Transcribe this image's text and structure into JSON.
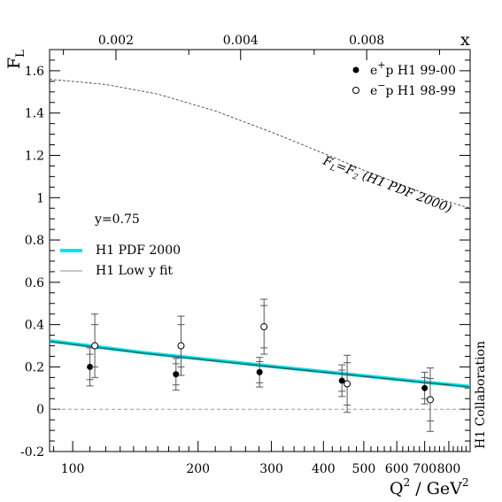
{
  "chart_data": {
    "type": "scatter",
    "title": "",
    "xlabel": "Q",
    "xlabel_sup": "2",
    "xlabel_rest": " / GeV",
    "xlabel_sup2": "2",
    "ylabel": "F",
    "ylabel_sub": "L",
    "xscale": "log",
    "xlim": [
      88,
      900
    ],
    "ylim": [
      -0.2,
      1.7
    ],
    "x_ticks": [
      {
        "value": 100,
        "label": "100"
      },
      {
        "value": 200,
        "label": "200"
      },
      {
        "value": 300,
        "label": "300"
      },
      {
        "value": 400,
        "label": "400"
      },
      {
        "value": 500,
        "label": "500"
      },
      {
        "value": 600,
        "label": "600"
      },
      {
        "value": 700,
        "label": "700"
      },
      {
        "value": 800,
        "label": "800"
      }
    ],
    "y_ticks": [
      {
        "value": -0.2,
        "label": "-0.2"
      },
      {
        "value": 0,
        "label": "0"
      },
      {
        "value": 0.2,
        "label": "0.2"
      },
      {
        "value": 0.4,
        "label": "0.4"
      },
      {
        "value": 0.6,
        "label": "0.6"
      },
      {
        "value": 0.8,
        "label": "0.8"
      },
      {
        "value": 1,
        "label": "1"
      },
      {
        "value": 1.2,
        "label": "1.2"
      },
      {
        "value": 1.4,
        "label": "1.4"
      },
      {
        "value": 1.6,
        "label": "1.6"
      }
    ],
    "top_axis": {
      "label": "x",
      "ticks": [
        {
          "q2": 127,
          "label": "0.002"
        },
        {
          "q2": 253,
          "label": "0.004"
        },
        {
          "q2": 508,
          "label": "0.008"
        }
      ]
    },
    "series": [
      {
        "name": "e⁺p H1 99-00",
        "marker": "filled-circle",
        "points": [
          {
            "x": 110,
            "y": 0.2,
            "stat": 0.06,
            "tot": 0.09
          },
          {
            "x": 177,
            "y": 0.165,
            "stat": 0.05,
            "tot": 0.075
          },
          {
            "x": 281,
            "y": 0.175,
            "stat": 0.05,
            "tot": 0.07
          },
          {
            "x": 443,
            "y": 0.135,
            "stat": 0.05,
            "tot": 0.075
          },
          {
            "x": 700,
            "y": 0.1,
            "stat": 0.05,
            "tot": 0.075
          }
        ]
      },
      {
        "name": "e⁻p H1 98-99",
        "marker": "open-circle",
        "points": [
          {
            "x": 113,
            "y": 0.3,
            "stat": 0.1,
            "tot": 0.15
          },
          {
            "x": 182,
            "y": 0.3,
            "stat": 0.1,
            "tot": 0.14
          },
          {
            "x": 288,
            "y": 0.39,
            "stat": 0.1,
            "tot": 0.13
          },
          {
            "x": 456,
            "y": 0.12,
            "stat": 0.1,
            "tot": 0.135
          },
          {
            "x": 722,
            "y": 0.045,
            "stat": 0.1,
            "tot": 0.15
          }
        ]
      }
    ],
    "curves": [
      {
        "name": "H1 PDF 2000",
        "style": "cyan-band",
        "points": [
          [
            88,
            0.323
          ],
          [
            150,
            0.266
          ],
          [
            300,
            0.203
          ],
          [
            500,
            0.158
          ],
          [
            700,
            0.128
          ],
          [
            900,
            0.107
          ]
        ]
      },
      {
        "name": "H1 Low y fit",
        "style": "thin-line",
        "points": [
          [
            88,
            0.319
          ],
          [
            150,
            0.262
          ],
          [
            300,
            0.199
          ],
          [
            500,
            0.155
          ],
          [
            700,
            0.125
          ],
          [
            900,
            0.104
          ]
        ]
      },
      {
        "name": "F_L=F_2 (H1 PDF 2000)",
        "style": "dashed",
        "points": [
          [
            88,
            1.56
          ],
          [
            120,
            1.535
          ],
          [
            160,
            1.49
          ],
          [
            220,
            1.41
          ],
          [
            300,
            1.31
          ],
          [
            400,
            1.21
          ],
          [
            500,
            1.13
          ],
          [
            600,
            1.07
          ],
          [
            700,
            1.02
          ],
          [
            800,
            0.98
          ],
          [
            900,
            0.95
          ]
        ]
      }
    ],
    "curve_label": {
      "text_main": "F",
      "text_sub1": "L",
      "text_mid": "=F",
      "text_sub2": "2",
      "text_end": " (H1 PDF 2000)"
    },
    "legend": {
      "placement": "top-right",
      "entries": [
        {
          "main": "e",
          "sup": "+",
          "rest": "p H1 99-00"
        },
        {
          "main": "e",
          "sup": "−",
          "rest": "p H1 98-99"
        }
      ]
    },
    "y_annotation": "y=0.75",
    "band_legend": [
      {
        "label": "H1 PDF 2000"
      },
      {
        "label": "H1 Low y fit"
      }
    ],
    "side_label": "H1 Collaboration",
    "colors": {
      "band": "#00e5ee",
      "band_edge": "#008b8b",
      "points": "#000000",
      "errors": "#555555",
      "zero_line": "#999999"
    }
  }
}
